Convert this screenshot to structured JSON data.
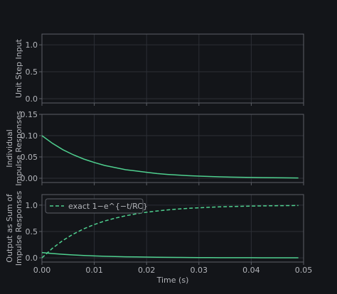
{
  "chart_data": [
    {
      "type": "line",
      "ylabel": "Unit Step Input",
      "xlim": [
        0,
        0.05
      ],
      "ylim": [
        -0.08,
        1.2
      ],
      "yticks": [
        0.0,
        0.5,
        1.0
      ],
      "ytick_labels": [
        "0.0",
        "0.5",
        "1.0"
      ],
      "series": [],
      "grid": true
    },
    {
      "type": "line",
      "ylabel": "Individual Impulse Responses",
      "xlim": [
        0,
        0.05
      ],
      "ylim": [
        -0.01,
        0.15
      ],
      "yticks": [
        0.0,
        0.05,
        0.1,
        0.15
      ],
      "ytick_labels": [
        "0.00",
        "0.05",
        "0.10",
        "0.15"
      ],
      "series": [
        {
          "style": "solid",
          "color": "#4fd08f",
          "x": [
            0,
            0.002,
            0.004,
            0.006,
            0.008,
            0.01,
            0.012,
            0.014,
            0.016,
            0.018,
            0.02,
            0.022,
            0.024,
            0.026,
            0.028,
            0.03,
            0.032,
            0.034,
            0.036,
            0.038,
            0.04,
            0.042,
            0.044,
            0.046,
            0.049
          ],
          "y": [
            0.1,
            0.082,
            0.067,
            0.055,
            0.045,
            0.037,
            0.03,
            0.025,
            0.02,
            0.017,
            0.014,
            0.011,
            0.009,
            0.0074,
            0.0061,
            0.005,
            0.0041,
            0.0033,
            0.0027,
            0.0022,
            0.0018,
            0.0015,
            0.0012,
            0.001,
            0.0007
          ]
        }
      ],
      "grid": true
    },
    {
      "type": "line",
      "ylabel": "Output as Sum of Impulse Responses",
      "xlabel": "Time (s)",
      "xlim": [
        0,
        0.05
      ],
      "ylim": [
        -0.08,
        1.2
      ],
      "yticks": [
        0.0,
        0.5,
        1.0
      ],
      "ytick_labels": [
        "0.0",
        "0.5",
        "1.0"
      ],
      "xticks": [
        0,
        0.01,
        0.02,
        0.03,
        0.04,
        0.05
      ],
      "xtick_labels": [
        "0.00",
        "0.01",
        "0.02",
        "0.03",
        "0.04",
        "0.05"
      ],
      "legend": "top-left",
      "series": [
        {
          "name": "exact 1−e^{−t/RC}",
          "style": "dashed",
          "color": "#4fd08f",
          "x": [
            0,
            0.002,
            0.004,
            0.006,
            0.008,
            0.01,
            0.012,
            0.014,
            0.016,
            0.018,
            0.02,
            0.022,
            0.024,
            0.026,
            0.028,
            0.03,
            0.032,
            0.034,
            0.036,
            0.038,
            0.04,
            0.042,
            0.044,
            0.046,
            0.049
          ],
          "y": [
            0,
            0.181,
            0.33,
            0.451,
            0.551,
            0.632,
            0.699,
            0.753,
            0.798,
            0.835,
            0.865,
            0.889,
            0.909,
            0.926,
            0.939,
            0.95,
            0.959,
            0.967,
            0.973,
            0.978,
            0.982,
            0.985,
            0.988,
            0.99,
            0.993
          ]
        },
        {
          "style": "solid",
          "color": "#4fd08f",
          "x": [
            0,
            0.002,
            0.004,
            0.006,
            0.008,
            0.01,
            0.012,
            0.014,
            0.016,
            0.018,
            0.02,
            0.022,
            0.024,
            0.026,
            0.028,
            0.03,
            0.032,
            0.034,
            0.036,
            0.038,
            0.04,
            0.042,
            0.044,
            0.046,
            0.049
          ],
          "y": [
            0.1,
            0.082,
            0.067,
            0.055,
            0.045,
            0.037,
            0.03,
            0.025,
            0.02,
            0.017,
            0.014,
            0.011,
            0.009,
            0.0074,
            0.0061,
            0.005,
            0.0041,
            0.0033,
            0.0027,
            0.0022,
            0.0018,
            0.0015,
            0.0012,
            0.001,
            0.0007
          ]
        }
      ],
      "grid": true
    }
  ],
  "colors": {
    "background": "#131519",
    "axes_frame": "#5c5f66",
    "grid": "#2c2f35",
    "text": "#b3b5ba",
    "line": "#4fd08f"
  }
}
